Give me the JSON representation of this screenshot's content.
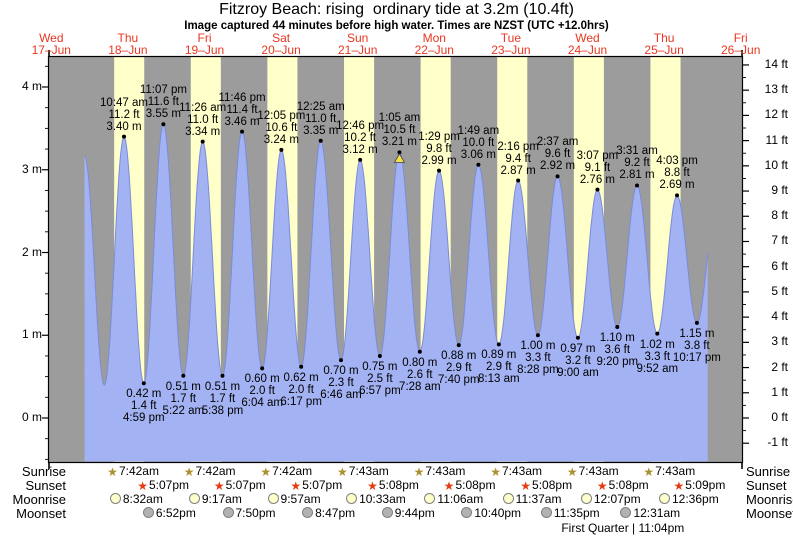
{
  "title": "Fitzroy Beach: rising  ordinary tide at 3.2m (10.4ft)",
  "subtitle": "Image captured 44 minutes before high water. Times are NZST (UTC +12.0hrs)",
  "colors": {
    "date_red": "#e93620",
    "band_yellow": "#ffffc9",
    "plot_gray": "#9c9c9c",
    "tide_blue": "#a3b2f2",
    "tide_edge": "#7b8cd8",
    "marker_yellow": "#f6e049",
    "sunrise_star": "#a89230",
    "sunset_star": "#e63b12",
    "moonrise_fill": "#ffffcc",
    "moonset_fill": "#b2b2b2"
  },
  "days": [
    {
      "dow": "Wed",
      "date": "17–Jun"
    },
    {
      "dow": "Thu",
      "date": "18–Jun"
    },
    {
      "dow": "Fri",
      "date": "19–Jun"
    },
    {
      "dow": "Sat",
      "date": "20–Jun"
    },
    {
      "dow": "Sun",
      "date": "21–Jun"
    },
    {
      "dow": "Mon",
      "date": "22–Jun"
    },
    {
      "dow": "Tue",
      "date": "23–Jun"
    },
    {
      "dow": "Wed",
      "date": "24–Jun"
    },
    {
      "dow": "Thu",
      "date": "25–Jun"
    },
    {
      "dow": "Fri",
      "date": "26–Jun"
    }
  ],
  "y_axis_left": {
    "labels": [
      "0 m",
      "1 m",
      "2 m",
      "3 m",
      "4 m"
    ]
  },
  "y_axis_right": {
    "labels": [
      "-1 ft",
      "0 ft",
      "1 ft",
      "2 ft",
      "3 ft",
      "4 ft",
      "5 ft",
      "6 ft",
      "7 ft",
      "8 ft",
      "9 ft",
      "10 ft",
      "11 ft",
      "12 ft",
      "13 ft",
      "14 ft"
    ]
  },
  "chart_data": {
    "type": "area",
    "title": "Fitzroy Beach: rising  ordinary tide at 3.2m (10.4ft)",
    "x_range": "Wed 17-Jun to Fri 26-Jun",
    "y_left_unit": "m",
    "y_right_unit": "ft",
    "ylim_m": [
      -0.53,
      4.36
    ],
    "highs": [
      {
        "day": 1,
        "time": "10:47 am",
        "ft": "11.2 ft",
        "m": "3.40 m",
        "m_val": 3.4
      },
      {
        "day": 1,
        "time": "11:07 pm",
        "ft": "11.6 ft",
        "m": "3.55 m",
        "m_val": 3.55
      },
      {
        "day": 2,
        "time": "11:26 am",
        "ft": "11.0 ft",
        "m": "3.34 m",
        "m_val": 3.34
      },
      {
        "day": 2,
        "time": "11:46 pm",
        "ft": "11.4 ft",
        "m": "3.46 m",
        "m_val": 3.46
      },
      {
        "day": 3,
        "time": "12:05 pm",
        "ft": "10.6 ft",
        "m": "3.24 m",
        "m_val": 3.24
      },
      {
        "day": 4,
        "time": "12:25 am",
        "ft": "11.0 ft",
        "m": "3.35 m",
        "m_val": 3.35
      },
      {
        "day": 4,
        "time": "12:46 pm",
        "ft": "10.2 ft",
        "m": "3.12 m",
        "m_val": 3.12
      },
      {
        "day": 5,
        "time": "1:05 am",
        "ft": "10.5 ft",
        "m": "3.21 m",
        "m_val": 3.21,
        "marker": "next-high-triangle"
      },
      {
        "day": 5,
        "time": "1:29 pm",
        "ft": "9.8 ft",
        "m": "2.99 m",
        "m_val": 2.99
      },
      {
        "day": 6,
        "time": "1:49 am",
        "ft": "10.0 ft",
        "m": "3.06 m",
        "m_val": 3.06
      },
      {
        "day": 6,
        "time": "2:16 pm",
        "ft": "9.4 ft",
        "m": "2.87 m",
        "m_val": 2.87
      },
      {
        "day": 7,
        "time": "2:37 am",
        "ft": "9.6 ft",
        "m": "2.92 m",
        "m_val": 2.92
      },
      {
        "day": 7,
        "time": "3:07 pm",
        "ft": "9.1 ft",
        "m": "2.76 m",
        "m_val": 2.76
      },
      {
        "day": 8,
        "time": "3:31 am",
        "ft": "9.2 ft",
        "m": "2.81 m",
        "m_val": 2.81
      },
      {
        "day": 8,
        "time": "4:03 pm",
        "ft": "8.8 ft",
        "m": "2.69 m",
        "m_val": 2.69
      }
    ],
    "lows": [
      {
        "day": 1,
        "time": "4:59 pm",
        "ft": "1.4 ft",
        "m": "0.42 m",
        "m_val": 0.42
      },
      {
        "day": 2,
        "time": "5:22 am",
        "ft": "1.7 ft",
        "m": "0.51 m",
        "m_val": 0.51
      },
      {
        "day": 2,
        "time": "5:38 pm",
        "ft": "1.7 ft",
        "m": "0.51 m",
        "m_val": 0.51
      },
      {
        "day": 3,
        "time": "6:04 am",
        "ft": "2.0 ft",
        "m": "0.60 m",
        "m_val": 0.6
      },
      {
        "day": 3,
        "time": "6:17 pm",
        "ft": "2.0 ft",
        "m": "0.62 m",
        "m_val": 0.62
      },
      {
        "day": 4,
        "time": "6:46 am",
        "ft": "2.3 ft",
        "m": "0.70 m",
        "m_val": 0.7
      },
      {
        "day": 4,
        "time": "6:57 pm",
        "ft": "2.5 ft",
        "m": "0.75 m",
        "m_val": 0.75
      },
      {
        "day": 5,
        "time": "7:28 am",
        "ft": "2.6 ft",
        "m": "0.80 m",
        "m_val": 0.8
      },
      {
        "day": 5,
        "time": "7:40 pm",
        "ft": "2.9 ft",
        "m": "0.88 m",
        "m_val": 0.88
      },
      {
        "day": 6,
        "time": "8:13 am",
        "ft": "2.9 ft",
        "m": "0.89 m",
        "m_val": 0.89
      },
      {
        "day": 6,
        "time": "8:28 pm",
        "ft": "3.3 ft",
        "m": "1.00 m",
        "m_val": 1.0
      },
      {
        "day": 7,
        "time": "9:00 am",
        "ft": "3.2 ft",
        "m": "0.97 m",
        "m_val": 0.97
      },
      {
        "day": 7,
        "time": "9:20 pm",
        "ft": "3.6 ft",
        "m": "1.10 m",
        "m_val": 1.1
      },
      {
        "day": 8,
        "time": "9:52 am",
        "ft": "3.3 ft",
        "m": "1.02 m",
        "m_val": 1.02
      },
      {
        "day": 8,
        "time": "10:17 pm",
        "ft": "3.8 ft",
        "m": "1.15 m",
        "m_val": 1.15
      }
    ],
    "curve_edge_points": [
      {
        "day": 0,
        "time": "10:25 pm",
        "m_val": 3.17
      },
      {
        "day": 1,
        "time": "4:37 am",
        "m_val": 0.4
      },
      {
        "day": 9,
        "time": "4:30 am",
        "m_val": 2.62
      }
    ]
  },
  "almanac": {
    "sunrise": {
      "label": "Sunrise",
      "entries": [
        {
          "day": 1,
          "time": "7:42am"
        },
        {
          "day": 2,
          "time": "7:42am"
        },
        {
          "day": 3,
          "time": "7:42am"
        },
        {
          "day": 4,
          "time": "7:43am"
        },
        {
          "day": 5,
          "time": "7:43am"
        },
        {
          "day": 6,
          "time": "7:43am"
        },
        {
          "day": 7,
          "time": "7:43am"
        },
        {
          "day": 8,
          "time": "7:43am"
        }
      ]
    },
    "sunset": {
      "label": "Sunset",
      "entries": [
        {
          "day": 1,
          "time": "5:07pm"
        },
        {
          "day": 2,
          "time": "5:07pm"
        },
        {
          "day": 3,
          "time": "5:07pm"
        },
        {
          "day": 4,
          "time": "5:08pm"
        },
        {
          "day": 5,
          "time": "5:08pm"
        },
        {
          "day": 6,
          "time": "5:08pm"
        },
        {
          "day": 7,
          "time": "5:08pm"
        },
        {
          "day": 8,
          "time": "5:09pm"
        }
      ]
    },
    "moonrise": {
      "label": "Moonrise",
      "entries": [
        {
          "day": 1,
          "time": "8:32am"
        },
        {
          "day": 2,
          "time": "9:17am"
        },
        {
          "day": 3,
          "time": "9:57am"
        },
        {
          "day": 4,
          "time": "10:33am"
        },
        {
          "day": 5,
          "time": "11:06am"
        },
        {
          "day": 6,
          "time": "11:37am"
        },
        {
          "day": 7,
          "time": "12:07pm"
        },
        {
          "day": 8,
          "time": "12:36pm"
        }
      ]
    },
    "moonset": {
      "label": "Moonset",
      "entries": [
        {
          "day": 1,
          "time": "6:52pm"
        },
        {
          "day": 2,
          "time": "7:50pm"
        },
        {
          "day": 3,
          "time": "8:47pm"
        },
        {
          "day": 4,
          "time": "9:44pm"
        },
        {
          "day": 5,
          "time": "10:40pm"
        },
        {
          "day": 6,
          "time": "11:35pm"
        },
        {
          "day": 8,
          "time": "12:31am"
        }
      ]
    },
    "moon_phase": {
      "text": "First Quarter | 11:04pm",
      "day": 7,
      "time": "11:04pm"
    }
  }
}
